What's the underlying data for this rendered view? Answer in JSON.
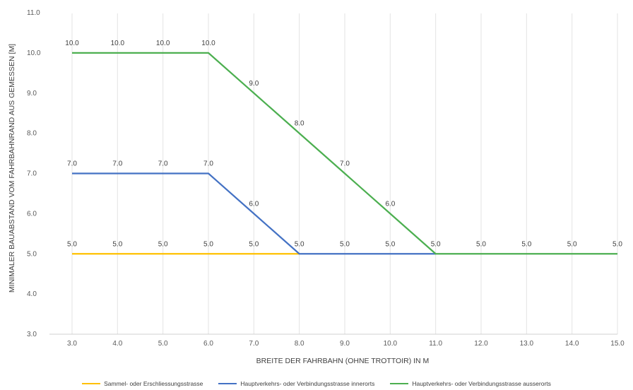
{
  "chart_data": {
    "type": "line",
    "title": "",
    "xlabel": "BREITE DER FAHRBAHN (OHNE TROTTOIR) IN M",
    "ylabel": "MINIMALER BAUABSTAND VOM FAHRBAHNRAND AUS GEMESSEN [M]",
    "xlim": [
      3,
      15
    ],
    "ylim": [
      3,
      11
    ],
    "x_ticks": [
      "3.0",
      "4.0",
      "5.0",
      "6.0",
      "7.0",
      "8.0",
      "9.0",
      "10.0",
      "11.0",
      "12.0",
      "13.0",
      "14.0",
      "15.0"
    ],
    "y_ticks": [
      "3.0",
      "4.0",
      "5.0",
      "6.0",
      "7.0",
      "8.0",
      "9.0",
      "10.0",
      "11.0"
    ],
    "grid": "vertical",
    "legend_position": "bottom",
    "series": [
      {
        "name": "Sammel- oder Erschliessungsstrasse",
        "color": "#FFC000",
        "x": [
          3,
          4,
          5,
          6,
          7,
          8
        ],
        "y": [
          5.0,
          5.0,
          5.0,
          5.0,
          5.0,
          5.0
        ],
        "labels": [
          "5.0",
          "5.0",
          "5.0",
          "5.0",
          "5.0",
          "5.0"
        ]
      },
      {
        "name": "Hauptverkehrs- oder Verbindungsstrasse innerorts",
        "color": "#4472C4",
        "x": [
          3,
          4,
          5,
          6,
          7,
          8,
          9,
          10,
          11
        ],
        "y": [
          7.0,
          7.0,
          7.0,
          7.0,
          6.0,
          5.0,
          5.0,
          5.0,
          5.0
        ],
        "labels": [
          "7.0",
          "7.0",
          "7.0",
          "7.0",
          "6.0",
          "",
          "5.0",
          "5.0",
          ""
        ]
      },
      {
        "name": "Hauptverkehrs- oder Verbindungsstrasse ausserorts",
        "color": "#4CAF50",
        "x": [
          3,
          4,
          5,
          6,
          7,
          8,
          9,
          10,
          11,
          12,
          13,
          14,
          15
        ],
        "y": [
          10.0,
          10.0,
          10.0,
          10.0,
          9.0,
          8.0,
          7.0,
          6.0,
          5.0,
          5.0,
          5.0,
          5.0,
          5.0
        ],
        "labels": [
          "10.0",
          "10.0",
          "10.0",
          "10.0",
          "9.0",
          "8.0",
          "7.0",
          "6.0",
          "5.0",
          "5.0",
          "5.0",
          "5.0",
          "5.0"
        ]
      }
    ]
  }
}
